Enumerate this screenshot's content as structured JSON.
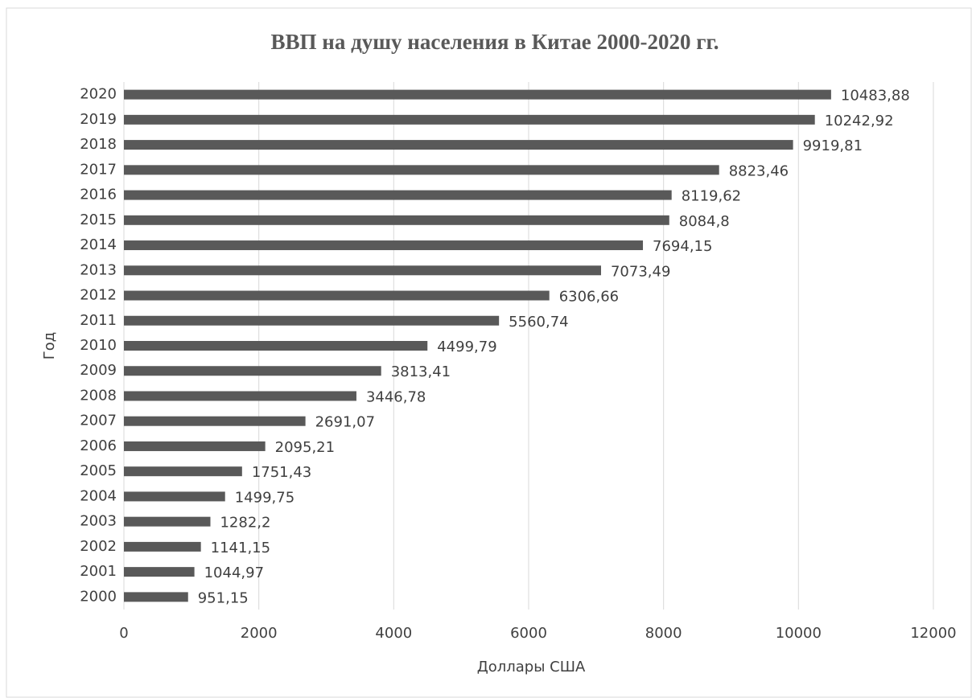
{
  "chart_data": {
    "type": "bar",
    "orientation": "horizontal",
    "title": "ВВП на душу населения в Китае 2000-2020 гг.",
    "x_label": "Доллары США",
    "y_label": "Год",
    "categories": [
      "2000",
      "2001",
      "2002",
      "2003",
      "2004",
      "2005",
      "2006",
      "2007",
      "2008",
      "2009",
      "2010",
      "2011",
      "2012",
      "2013",
      "2014",
      "2015",
      "2016",
      "2017",
      "2018",
      "2019",
      "2020"
    ],
    "values": [
      951.15,
      1044.97,
      1141.15,
      1282.2,
      1499.75,
      1751.43,
      2095.21,
      2691.07,
      3446.78,
      3813.41,
      4499.79,
      5560.74,
      6306.66,
      7073.49,
      7694.15,
      8084.8,
      8119.62,
      8823.46,
      9919.81,
      10242.92,
      10483.88
    ],
    "value_labels": [
      "951,15",
      "1044,97",
      "1141,15",
      "1282,2",
      "1499,75",
      "1751,43",
      "2095,21",
      "2691,07",
      "3446,78",
      "3813,41",
      "4499,79",
      "5560,74",
      "6306,66",
      "7073,49",
      "7694,15",
      "8084,8",
      "8119,62",
      "8823,46",
      "9919,81",
      "10242,92",
      "10483,88"
    ],
    "color": "#595959",
    "xlim": [
      0,
      12000
    ],
    "xticks": [
      0,
      2000,
      4000,
      6000,
      8000,
      10000,
      12000
    ],
    "grid": true
  }
}
